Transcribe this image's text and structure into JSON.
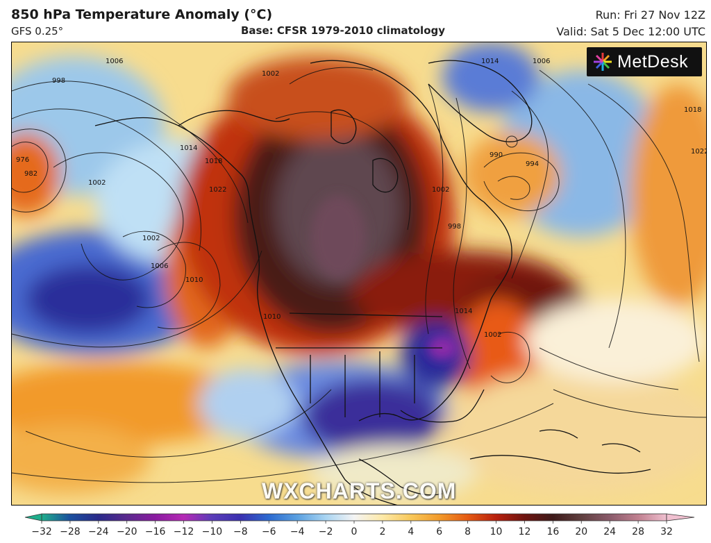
{
  "header": {
    "title": "850 hPa Temperature Anomaly (°C)",
    "model": "GFS 0.25°",
    "base": "Base: CFSR 1979-2010 climatology",
    "run": "Run: Fri 27 Nov 12Z",
    "valid": "Valid: Sat 5 Dec 12:00 UTC"
  },
  "branding": {
    "logo": "MetDesk",
    "watermark": "WXCHARTS.COM"
  },
  "map": {
    "contour_labels": [
      "1006",
      "998",
      "1002",
      "976",
      "982",
      "1014",
      "1018",
      "1022",
      "1002",
      "1006",
      "1010",
      "1002",
      "1010",
      "1014",
      "1006",
      "990",
      "994",
      "1002",
      "998",
      "1018",
      "1022",
      "1014",
      "1002"
    ]
  },
  "legend": {
    "ticks": [
      "−32",
      "−28",
      "−24",
      "−20",
      "−16",
      "−12",
      "−10",
      "−8",
      "−6",
      "−4",
      "−2",
      "0",
      "2",
      "4",
      "6",
      "8",
      "10",
      "12",
      "16",
      "20",
      "24",
      "28",
      "32"
    ],
    "colors": [
      "#1fae8c",
      "#1a4f9e",
      "#2a2a8a",
      "#5a2a8e",
      "#8a1aa0",
      "#b52ab5",
      "#5a3cb8",
      "#3a30b0",
      "#2c6ad0",
      "#5aa0e0",
      "#a8d4f2",
      "#f4f4f4",
      "#fde9a8",
      "#f8c85a",
      "#f29a2a",
      "#e55a12",
      "#b8200e",
      "#6e1410",
      "#3e1a1a",
      "#604040",
      "#8a5a6a",
      "#c08090",
      "#f0c0d0"
    ]
  }
}
